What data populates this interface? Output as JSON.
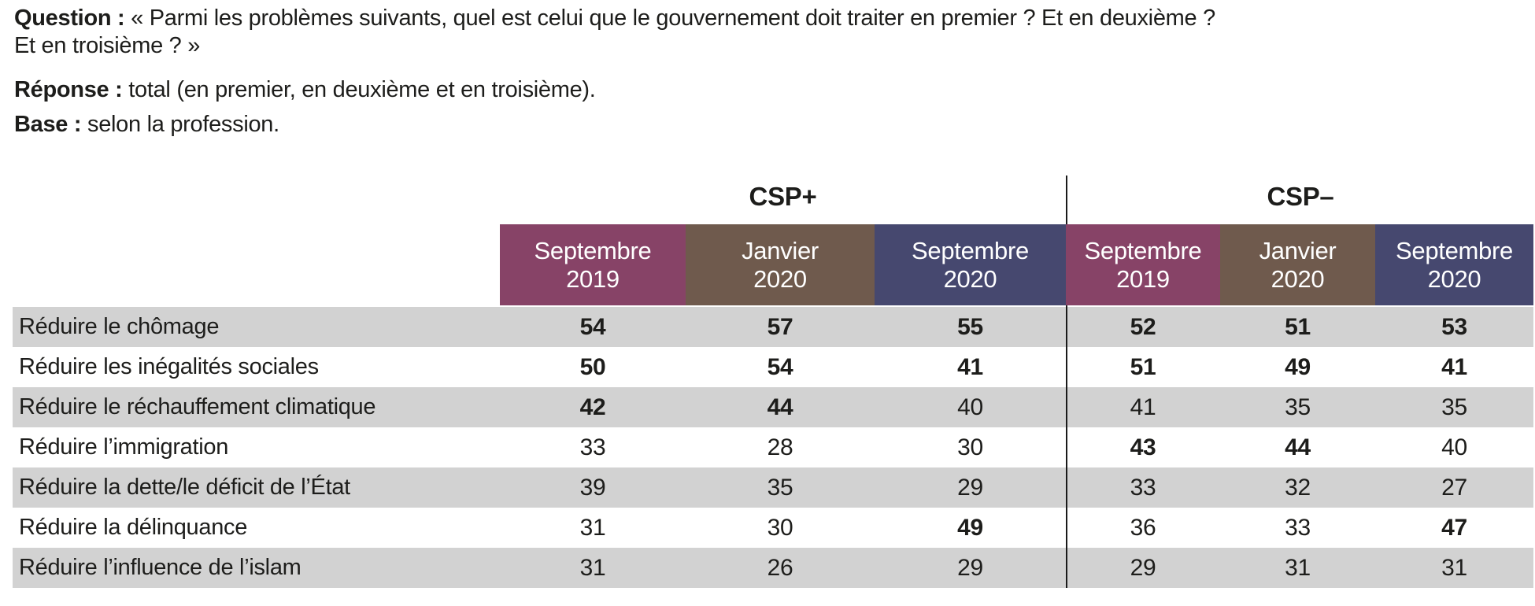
{
  "header": {
    "question_label": "Question :",
    "question_line1": "« Parmi les problèmes suivants, quel est celui que le gouvernement doit traiter en premier ? Et en deuxième ?",
    "question_line2": "Et en troisième ? »",
    "reponse_label": "Réponse :",
    "reponse_text": "total (en premier, en deuxième et en troisième).",
    "base_label": "Base :",
    "base_text": "selon la profession."
  },
  "colors": {
    "maroon": "#874367",
    "brown": "#6F5A4D",
    "slate": "#46486F",
    "row_gray": "#D2D2D2",
    "divider": "#1A1A1A"
  },
  "table": {
    "groups": [
      {
        "label": "CSP+"
      },
      {
        "label": "CSP–"
      }
    ],
    "columns": [
      {
        "line1": "Septembre",
        "line2": "2019"
      },
      {
        "line1": "Janvier",
        "line2": "2020"
      },
      {
        "line1": "Septembre",
        "line2": "2020"
      },
      {
        "line1": "Septembre",
        "line2": "2019"
      },
      {
        "line1": "Janvier",
        "line2": "2020"
      },
      {
        "line1": "Septembre",
        "line2": "2020"
      }
    ],
    "rows": [
      {
        "label": "Réduire le chômage",
        "values": [
          "54",
          "57",
          "55",
          "52",
          "51",
          "53"
        ],
        "bold": [
          true,
          true,
          true,
          true,
          true,
          true
        ]
      },
      {
        "label": "Réduire les inégalités sociales",
        "values": [
          "50",
          "54",
          "41",
          "51",
          "49",
          "41"
        ],
        "bold": [
          true,
          true,
          true,
          true,
          true,
          true
        ]
      },
      {
        "label": "Réduire le réchauffement climatique",
        "values": [
          "42",
          "44",
          "40",
          "41",
          "35",
          "35"
        ],
        "bold": [
          true,
          true,
          false,
          false,
          false,
          false
        ]
      },
      {
        "label": "Réduire l’immigration",
        "values": [
          "33",
          "28",
          "30",
          "43",
          "44",
          "40"
        ],
        "bold": [
          false,
          false,
          false,
          true,
          true,
          false
        ]
      },
      {
        "label": "Réduire la dette/le déficit de l’État",
        "values": [
          "39",
          "35",
          "29",
          "33",
          "32",
          "27"
        ],
        "bold": [
          false,
          false,
          false,
          false,
          false,
          false
        ]
      },
      {
        "label": "Réduire la délinquance",
        "values": [
          "31",
          "30",
          "49",
          "36",
          "33",
          "47"
        ],
        "bold": [
          false,
          false,
          true,
          false,
          false,
          true
        ]
      },
      {
        "label": "Réduire l’influence de l’islam",
        "values": [
          "31",
          "26",
          "29",
          "29",
          "31",
          "31"
        ],
        "bold": [
          false,
          false,
          false,
          false,
          false,
          false
        ]
      }
    ]
  }
}
